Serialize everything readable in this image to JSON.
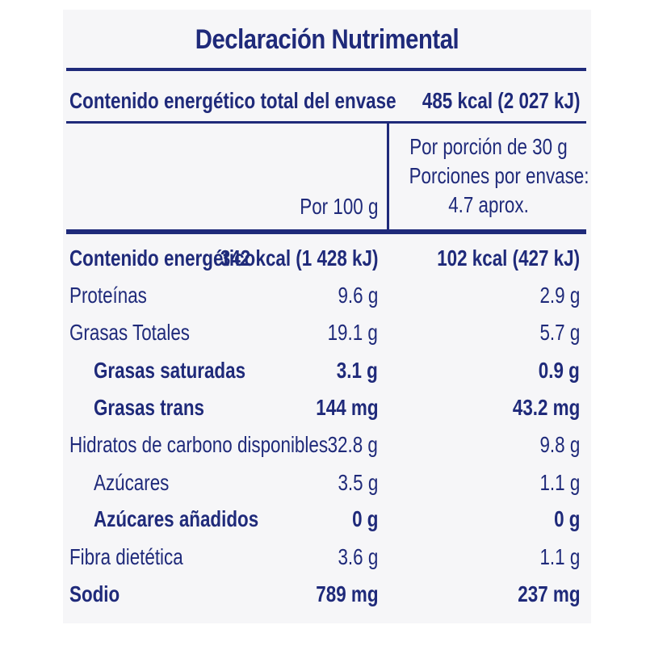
{
  "title": "Declaración Nutrimental",
  "total_energy": {
    "label": "Contenido energético total del envase",
    "value": "485 kcal (2 027 kJ)"
  },
  "columns": {
    "per_100": "Por 100 g",
    "per_portion_line1": "Por porción de 30 g",
    "per_portion_line2": "Porciones por envase:",
    "per_portion_line3": "4.7 aprox."
  },
  "rows": [
    {
      "label": "Contenido energético",
      "per_100": "342 kcal (1 428 kJ)",
      "per_portion": "102 kcal (427 kJ)"
    },
    {
      "label": "Proteínas",
      "per_100": "9.6 g",
      "per_portion": "2.9 g"
    },
    {
      "label": "Grasas Totales",
      "per_100": "19.1 g",
      "per_portion": "5.7 g"
    },
    {
      "label": "Grasas saturadas",
      "per_100": "3.1 g",
      "per_portion": "0.9 g"
    },
    {
      "label": "Grasas trans",
      "per_100": "144 mg",
      "per_portion": "43.2 mg"
    },
    {
      "label": "Hidratos de carbono disponibles",
      "per_100": "32.8 g",
      "per_portion": "9.8 g"
    },
    {
      "label": "Azúcares",
      "per_100": "3.5 g",
      "per_portion": "1.1 g"
    },
    {
      "label": "Azúcares añadidos",
      "per_100": "0 g",
      "per_portion": "0 g"
    },
    {
      "label": "Fibra dietética",
      "per_100": "3.6 g",
      "per_portion": "1.1 g"
    },
    {
      "label": "Sodio",
      "per_100": "789 mg",
      "per_portion": "237 mg"
    }
  ]
}
